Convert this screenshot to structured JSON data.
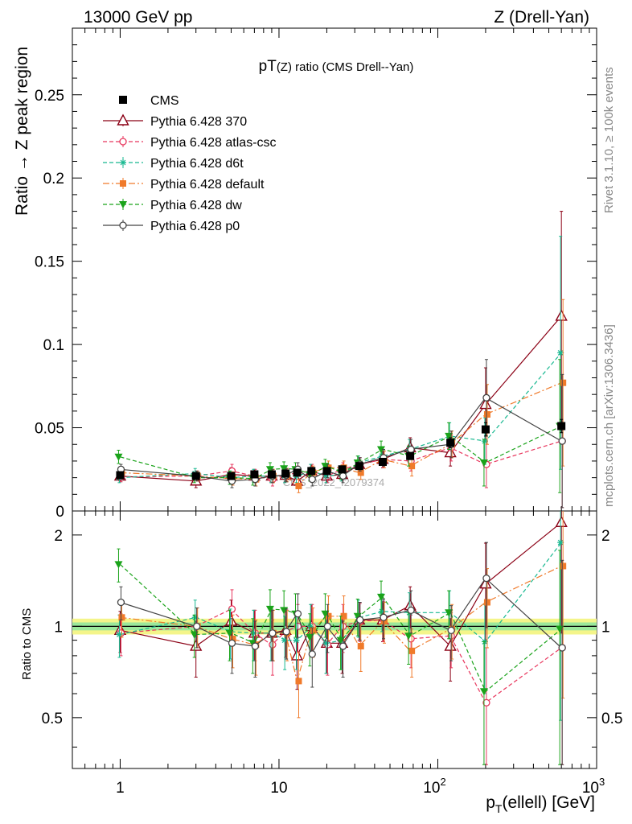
{
  "header": {
    "left": "13000 GeV pp",
    "right": "Z (Drell-Yan)",
    "side_top": "Rivet 3.1.10, ≥ 100k events",
    "side_bottom": "mcplots.cern.ch [arXiv:1306.3436]",
    "watermark": "CMS_2022_I2079374"
  },
  "chart_data": [
    {
      "type": "scatter",
      "title_main": "pT",
      "title_sub": "(Z) ratio (CMS Drell--Yan)",
      "ylabel": "Ratio → Z peak region",
      "xscale": "log",
      "xlim": [
        0.5,
        1000
      ],
      "ylim": [
        0,
        0.29
      ],
      "yticks": [
        {
          "v": 0,
          "label": "0"
        },
        {
          "v": 0.05,
          "label": "0.05"
        },
        {
          "v": 0.1,
          "label": "0.1"
        },
        {
          "v": 0.15,
          "label": "0.15"
        },
        {
          "v": 0.2,
          "label": "0.2"
        },
        {
          "v": 0.25,
          "label": "0.25"
        }
      ],
      "legend_position": "top-left",
      "x": [
        1,
        3,
        5,
        7,
        9,
        11,
        13,
        16,
        20,
        25,
        32,
        45,
        67,
        120,
        200,
        600
      ],
      "series": [
        {
          "name": "CMS",
          "color": "#000000",
          "marker": "square",
          "line": "none",
          "values": [
            0.0215,
            0.021,
            0.021,
            0.022,
            0.022,
            0.0225,
            0.023,
            0.024,
            0.024,
            0.025,
            0.027,
            0.0295,
            0.033,
            0.041,
            0.049,
            0.051
          ],
          "errors": [
            0.001,
            0.001,
            0.001,
            0.001,
            0.001,
            0.001,
            0.001,
            0.001,
            0.001,
            0.001,
            0.0012,
            0.0015,
            0.002,
            0.003,
            0.004,
            0.004
          ]
        },
        {
          "name": "Pythia 6.428 370",
          "color": "#8b0015",
          "marker": "triangle-open",
          "line": "solid",
          "values": [
            0.021,
            0.018,
            0.022,
            0.021,
            0.021,
            0.0215,
            0.018,
            0.024,
            0.021,
            0.022,
            0.028,
            0.031,
            0.038,
            0.035,
            0.064,
            0.117
          ],
          "errors": [
            0.003,
            0.004,
            0.004,
            0.004,
            0.004,
            0.004,
            0.004,
            0.004,
            0.004,
            0.004,
            0.004,
            0.005,
            0.006,
            0.008,
            0.022,
            0.063
          ]
        },
        {
          "name": "Pythia 6.428 atlas-csc",
          "color": "#e8365d",
          "marker": "circle-open",
          "line": "dashed",
          "values": [
            0.0205,
            0.021,
            0.024,
            0.021,
            0.019,
            0.0215,
            0.023,
            0.024,
            0.021,
            0.025,
            0.028,
            0.031,
            0.03,
            0.038,
            0.028,
            0.042
          ],
          "errors": [
            0.003,
            0.003,
            0.004,
            0.004,
            0.004,
            0.004,
            0.004,
            0.004,
            0.004,
            0.004,
            0.004,
            0.005,
            0.006,
            0.008,
            0.014,
            0.04
          ]
        },
        {
          "name": "Pythia 6.428 d6t",
          "color": "#17b890",
          "marker": "asterisk",
          "line": "dashed",
          "values": [
            0.02,
            0.0225,
            0.02,
            0.021,
            0.021,
            0.021,
            0.021,
            0.024,
            0.021,
            0.022,
            0.029,
            0.033,
            0.037,
            0.045,
            0.042,
            0.095
          ],
          "errors": [
            0.003,
            0.003,
            0.004,
            0.004,
            0.004,
            0.004,
            0.004,
            0.004,
            0.004,
            0.004,
            0.004,
            0.005,
            0.006,
            0.008,
            0.014,
            0.07
          ]
        },
        {
          "name": "Pythia 6.428 default",
          "color": "#f07a2a",
          "marker": "square-filled",
          "line": "dashdot",
          "values": [
            0.023,
            0.021,
            0.0195,
            0.019,
            0.021,
            0.0215,
            0.015,
            0.023,
            0.026,
            0.026,
            0.023,
            0.031,
            0.027,
            0.04,
            0.058,
            0.077
          ],
          "errors": [
            0.003,
            0.003,
            0.004,
            0.004,
            0.004,
            0.004,
            0.004,
            0.004,
            0.004,
            0.004,
            0.004,
            0.005,
            0.006,
            0.008,
            0.018,
            0.05
          ]
        },
        {
          "name": "Pythia 6.428 dw",
          "color": "#1aa31a",
          "marker": "triangle-down-filled",
          "line": "dashed",
          "values": [
            0.0325,
            0.02,
            0.02,
            0.0195,
            0.025,
            0.0255,
            0.025,
            0.022,
            0.027,
            0.023,
            0.029,
            0.037,
            0.033,
            0.045,
            0.029,
            0.051
          ],
          "errors": [
            0.004,
            0.003,
            0.004,
            0.004,
            0.004,
            0.004,
            0.004,
            0.004,
            0.004,
            0.004,
            0.004,
            0.005,
            0.006,
            0.008,
            0.014,
            0.04
          ]
        },
        {
          "name": "Pythia 6.428 p0",
          "color": "#444444",
          "marker": "circle-open",
          "line": "solid",
          "values": [
            0.025,
            0.021,
            0.018,
            0.019,
            0.021,
            0.0215,
            0.025,
            0.019,
            0.024,
            0.021,
            0.028,
            0.032,
            0.037,
            0.04,
            0.068,
            0.042
          ],
          "errors": [
            0.003,
            0.003,
            0.004,
            0.004,
            0.004,
            0.004,
            0.004,
            0.004,
            0.004,
            0.004,
            0.004,
            0.005,
            0.006,
            0.008,
            0.023,
            0.04
          ]
        }
      ]
    },
    {
      "type": "scatter",
      "ylabel": "Ratio to CMS",
      "xlabel_main": "p",
      "xlabel_sub": "T",
      "xlabel_rest": "(ellell) [GeV]",
      "xscale": "log",
      "xlim": [
        0.5,
        1000
      ],
      "xticks": [
        {
          "v": 1,
          "base": "1",
          "exp": ""
        },
        {
          "v": 10,
          "base": "10",
          "exp": ""
        },
        {
          "v": 100,
          "base": "10",
          "exp": "2"
        },
        {
          "v": 1000,
          "base": "10",
          "exp": "3"
        }
      ],
      "ylim": [
        0.34,
        2.4
      ],
      "yticks": [
        {
          "v": 0.5,
          "label": "0.5"
        },
        {
          "v": 1,
          "label": "1"
        },
        {
          "v": 2,
          "label": "2"
        }
      ],
      "band_inner": 0.03,
      "band_outer": 0.06,
      "reference": 1,
      "series": [
        {
          "name": "Pythia 6.428 370",
          "values": [
            0.97,
            0.86,
            1.04,
            0.95,
            0.95,
            0.97,
            0.8,
            1.0,
            0.88,
            0.88,
            1.05,
            1.05,
            1.17,
            0.86,
            1.38,
            2.2
          ],
          "errors": [
            0.15,
            0.18,
            0.18,
            0.18,
            0.18,
            0.18,
            0.18,
            0.18,
            0.18,
            0.18,
            0.15,
            0.16,
            0.18,
            0.2,
            0.5,
            1.25
          ]
        },
        {
          "name": "Pythia 6.428 atlas-csc",
          "values": [
            0.95,
            1.0,
            1.14,
            0.95,
            0.87,
            0.96,
            1.0,
            1.0,
            0.87,
            1.0,
            1.04,
            1.05,
            0.91,
            0.93,
            0.56,
            0.85
          ],
          "errors": [
            0.15,
            0.15,
            0.18,
            0.18,
            0.18,
            0.18,
            0.18,
            0.18,
            0.18,
            0.18,
            0.15,
            0.16,
            0.18,
            0.2,
            0.29,
            0.8
          ]
        },
        {
          "name": "Pythia 6.428 d6t",
          "values": [
            0.94,
            1.07,
            0.96,
            0.95,
            0.95,
            0.9,
            0.9,
            1.0,
            0.88,
            0.9,
            1.07,
            1.12,
            1.11,
            1.11,
            0.89,
            1.89
          ],
          "errors": [
            0.15,
            0.15,
            0.18,
            0.18,
            0.18,
            0.18,
            0.18,
            0.18,
            0.18,
            0.18,
            0.15,
            0.16,
            0.18,
            0.2,
            0.29,
            1.4
          ]
        },
        {
          "name": "Pythia 6.428 default",
          "values": [
            1.07,
            1.0,
            0.91,
            0.87,
            0.95,
            0.95,
            0.66,
            0.97,
            1.08,
            1.08,
            0.86,
            1.04,
            0.83,
            0.98,
            1.2,
            1.58
          ],
          "errors": [
            0.15,
            0.15,
            0.18,
            0.18,
            0.18,
            0.18,
            0.16,
            0.18,
            0.18,
            0.18,
            0.15,
            0.16,
            0.15,
            0.2,
            0.35,
            1.0
          ]
        },
        {
          "name": "Pythia 6.428 dw",
          "values": [
            1.6,
            0.94,
            0.95,
            0.88,
            1.14,
            1.13,
            1.1,
            0.92,
            1.1,
            0.9,
            1.08,
            1.25,
            0.93,
            1.11,
            0.61,
            0.98
          ],
          "errors": [
            0.2,
            0.15,
            0.18,
            0.18,
            0.18,
            0.18,
            0.18,
            0.18,
            0.18,
            0.18,
            0.15,
            0.16,
            0.18,
            0.2,
            0.28,
            0.8
          ]
        },
        {
          "name": "Pythia 6.428 p0",
          "values": [
            1.2,
            1.0,
            0.88,
            0.86,
            0.95,
            0.96,
            1.1,
            0.81,
            1.0,
            0.86,
            1.05,
            1.07,
            1.13,
            0.97,
            1.44,
            0.85
          ],
          "errors": [
            0.15,
            0.15,
            0.18,
            0.18,
            0.18,
            0.18,
            0.18,
            0.18,
            0.18,
            0.18,
            0.15,
            0.16,
            0.18,
            0.2,
            0.45,
            0.8
          ]
        }
      ]
    }
  ]
}
